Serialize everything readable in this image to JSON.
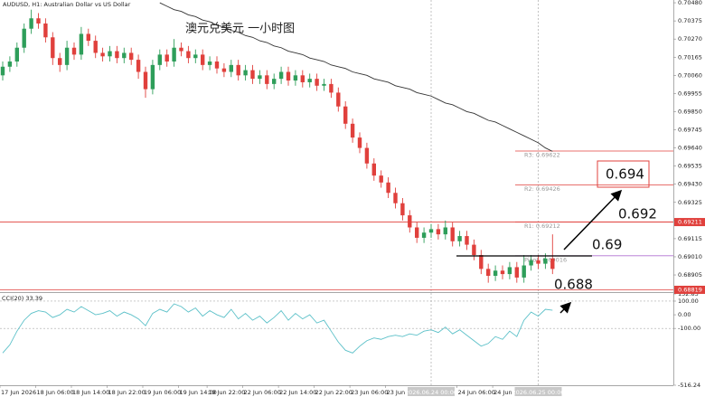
{
  "chart_data": {
    "type": "candlestick",
    "title": "AUDUSD, H1: Australian Dollar vs US Dollar",
    "caption": "澳元兑美元 一小时图",
    "up_color": "#2e9e5a",
    "down_color": "#e0403c",
    "open": [
      0.7006,
      0.7011,
      0.7014,
      0.7022,
      0.7033,
      0.7039,
      0.7036,
      0.7028,
      0.7016,
      0.7012,
      0.7022,
      0.7018,
      0.703,
      0.7026,
      0.7019,
      0.7017,
      0.702,
      0.7016,
      0.7019,
      0.7015,
      0.7008,
      0.6998,
      0.7012,
      0.7018,
      0.7014,
      0.7022,
      0.702,
      0.7016,
      0.7018,
      0.7012,
      0.7014,
      0.701,
      0.7008,
      0.7012,
      0.7006,
      0.7009,
      0.7004,
      0.7006,
      0.7001,
      0.7004,
      0.7008,
      0.7003,
      0.7006,
      0.7002,
      0.7004,
      0.7,
      0.7001,
      0.6996,
      0.6988,
      0.6978,
      0.697,
      0.6964,
      0.6955,
      0.6948,
      0.6944,
      0.6938,
      0.6932,
      0.6925,
      0.6918,
      0.6912,
      0.6915,
      0.6917,
      0.6914,
      0.6918,
      0.691,
      0.6913,
      0.6908,
      0.6902,
      0.6894,
      0.689,
      0.6893,
      0.6891,
      0.6895,
      0.6889,
      0.6896,
      0.6899,
      0.6897,
      0.69
    ],
    "high": [
      0.7014,
      0.7017,
      0.7025,
      0.7036,
      0.7044,
      0.7042,
      0.7039,
      0.7031,
      0.7019,
      0.7026,
      0.7025,
      0.7034,
      0.7033,
      0.7029,
      0.7022,
      0.7023,
      0.7023,
      0.7022,
      0.7022,
      0.7018,
      0.7011,
      0.7015,
      0.7021,
      0.7021,
      0.7027,
      0.7025,
      0.7023,
      0.7021,
      0.7021,
      0.7017,
      0.7017,
      0.7013,
      0.7015,
      0.7015,
      0.7012,
      0.7012,
      0.7009,
      0.7009,
      0.7007,
      0.7011,
      0.7011,
      0.7009,
      0.7009,
      0.7007,
      0.7007,
      0.7004,
      0.7004,
      0.6999,
      0.6991,
      0.6981,
      0.6973,
      0.6967,
      0.6958,
      0.6951,
      0.6947,
      0.6941,
      0.6935,
      0.6928,
      0.6921,
      0.6918,
      0.692,
      0.692,
      0.6922,
      0.6921,
      0.6916,
      0.6916,
      0.6911,
      0.6905,
      0.6897,
      0.6896,
      0.6896,
      0.6898,
      0.6898,
      0.6902,
      0.6902,
      0.6902,
      0.6903,
      0.6914
    ],
    "low": [
      0.7003,
      0.7008,
      0.7011,
      0.7019,
      0.703,
      0.7033,
      0.7025,
      0.7012,
      0.7008,
      0.7009,
      0.7015,
      0.7015,
      0.7023,
      0.7016,
      0.7014,
      0.7014,
      0.7013,
      0.7013,
      0.7012,
      0.7004,
      0.6993,
      0.6995,
      0.7009,
      0.7011,
      0.7011,
      0.7017,
      0.7013,
      0.7013,
      0.7009,
      0.7009,
      0.7007,
      0.7005,
      0.7005,
      0.7003,
      0.7003,
      0.7001,
      0.7001,
      0.6998,
      0.6998,
      0.7001,
      0.7,
      0.7,
      0.6999,
      0.6999,
      0.6997,
      0.6997,
      0.6993,
      0.6985,
      0.6975,
      0.6967,
      0.6961,
      0.6952,
      0.6945,
      0.6941,
      0.6935,
      0.6929,
      0.6922,
      0.6915,
      0.6909,
      0.6909,
      0.6912,
      0.6911,
      0.6911,
      0.6907,
      0.6907,
      0.6905,
      0.6899,
      0.6891,
      0.6886,
      0.6887,
      0.6888,
      0.6888,
      0.6886,
      0.6886,
      0.6893,
      0.6894,
      0.6894,
      0.6891
    ],
    "close": [
      0.7011,
      0.7014,
      0.7022,
      0.7033,
      0.7039,
      0.7036,
      0.7028,
      0.7016,
      0.7012,
      0.7022,
      0.7018,
      0.703,
      0.7026,
      0.7019,
      0.7017,
      0.702,
      0.7016,
      0.7019,
      0.7015,
      0.7008,
      0.6998,
      0.7012,
      0.7018,
      0.7014,
      0.7022,
      0.702,
      0.7016,
      0.7018,
      0.7012,
      0.7014,
      0.701,
      0.7008,
      0.7012,
      0.7006,
      0.7009,
      0.7004,
      0.7006,
      0.7001,
      0.7004,
      0.7008,
      0.7003,
      0.7006,
      0.7002,
      0.7004,
      0.7,
      0.7001,
      0.6996,
      0.6988,
      0.6978,
      0.697,
      0.6964,
      0.6955,
      0.6948,
      0.6944,
      0.6938,
      0.6932,
      0.6925,
      0.6918,
      0.6912,
      0.6915,
      0.6917,
      0.6914,
      0.6918,
      0.691,
      0.6913,
      0.6908,
      0.6902,
      0.6894,
      0.689,
      0.6893,
      0.6891,
      0.6895,
      0.6889,
      0.6896,
      0.6899,
      0.6897,
      0.69,
      0.6894
    ],
    "ma": {
      "color": "#333333",
      "values": [
        null,
        null,
        null,
        null,
        null,
        null,
        null,
        null,
        null,
        null,
        null,
        null,
        null,
        null,
        null,
        null,
        null,
        null,
        null,
        null,
        null,
        null,
        0.7048,
        0.7046,
        0.7044,
        0.7043,
        0.7041,
        0.704,
        0.7038,
        0.7037,
        0.7035,
        0.7034,
        0.7032,
        0.7031,
        0.7029,
        0.7028,
        0.7026,
        0.7025,
        0.7023,
        0.7022,
        0.702,
        0.7019,
        0.7018,
        0.7016,
        0.7015,
        0.7014,
        0.7012,
        0.7011,
        0.701,
        0.7008,
        0.7007,
        0.7006,
        0.7004,
        0.7003,
        0.7002,
        0.7,
        0.6999,
        0.6998,
        0.6996,
        0.6995,
        0.6994,
        0.6992,
        0.699,
        0.6989,
        0.6987,
        0.6985,
        0.6984,
        0.6982,
        0.698,
        0.6979,
        0.6977,
        0.6975,
        0.6973,
        0.6971,
        0.6969,
        0.6967,
        0.6964,
        0.6962
      ]
    },
    "ylim": [
      0.68811,
      0.70496
    ],
    "yticks": [
      {
        "value": 0.7048,
        "label": "0.70480"
      },
      {
        "value": 0.70375,
        "label": "0.70375"
      },
      {
        "value": 0.7027,
        "label": "0.70270"
      },
      {
        "value": 0.70165,
        "label": "0.70165"
      },
      {
        "value": 0.7006,
        "label": "0.70060"
      },
      {
        "value": 0.69955,
        "label": "0.69955"
      },
      {
        "value": 0.6985,
        "label": "0.69850"
      },
      {
        "value": 0.69745,
        "label": "0.69745"
      },
      {
        "value": 0.6964,
        "label": "0.69640"
      },
      {
        "value": 0.69535,
        "label": "0.69535"
      },
      {
        "value": 0.6943,
        "label": "0.69430"
      },
      {
        "value": 0.69325,
        "label": "0.69325"
      },
      {
        "value": 0.6922,
        "label": "0.69220"
      },
      {
        "value": 0.69115,
        "label": "0.69115"
      },
      {
        "value": 0.6901,
        "label": "0.69010"
      },
      {
        "value": 0.68905,
        "label": "0.68905"
      }
    ],
    "price_lines": [
      {
        "value": 0.69211,
        "label": "0.69211",
        "color": "#e0403c"
      },
      {
        "value": 0.68819,
        "label": "0.68819",
        "color": "#e0403c"
      }
    ],
    "pivots": [
      {
        "value": 0.69622,
        "label": "R3: 0.69622",
        "color": "#e0403c"
      },
      {
        "value": 0.69426,
        "label": "R2: 0.69426",
        "color": "#e0403c"
      },
      {
        "value": 0.69212,
        "label": "R1: 0.69212",
        "color": "#e0403c"
      },
      {
        "value": 0.69016,
        "label": "Pivot: 0.69016",
        "color": "#b070d0"
      }
    ],
    "xticks": [
      {
        "value": 0,
        "label": "17 Jun 2026"
      },
      {
        "value": 5,
        "label": "18 Jun 06:00"
      },
      {
        "value": 10,
        "label": "18 Jun 14:00"
      },
      {
        "value": 15,
        "label": "18 Jun 22:00"
      },
      {
        "value": 20,
        "label": "19 Jun 06:00"
      },
      {
        "value": 25,
        "label": "19 Jun 14:00"
      },
      {
        "value": 29,
        "label": "19 Jun 22:00"
      },
      {
        "value": 34,
        "label": "22 Jun 06:00"
      },
      {
        "value": 39,
        "label": "22 Jun 14:00"
      },
      {
        "value": 44,
        "label": "22 Jun 22:00"
      },
      {
        "value": 49,
        "label": "23 Jun 06:00"
      },
      {
        "value": 54,
        "label": "23 Jun 14:00"
      },
      {
        "value": 64,
        "label": "24 Jun 06:00"
      },
      {
        "value": 69,
        "label": "24 Jun 14:00"
      }
    ],
    "xmarkers": [
      {
        "value": 60,
        "label": "2026.06.24 00:00"
      },
      {
        "value": 75,
        "label": "2026.06.25 00:00"
      }
    ],
    "indicator": {
      "name": "CCI(20) 33.39",
      "color": "#5bc0c8",
      "ylim": [
        -516.24,
        152.83
      ],
      "yticks": [
        152.83,
        {
          "value": 100,
          "label": "100.00"
        },
        {
          "value": 0,
          "label": "0.00"
        },
        {
          "value": -100,
          "label": "-100.00"
        },
        -516.24
      ],
      "values": [
        -280,
        -220,
        -120,
        -40,
        10,
        30,
        20,
        -20,
        0,
        40,
        20,
        60,
        30,
        0,
        10,
        30,
        -10,
        20,
        0,
        -30,
        -80,
        10,
        40,
        20,
        80,
        60,
        20,
        50,
        -10,
        30,
        0,
        -20,
        40,
        -30,
        10,
        -40,
        -10,
        -60,
        -20,
        30,
        -40,
        10,
        -30,
        0,
        -60,
        -40,
        -120,
        -200,
        -260,
        -280,
        -230,
        -190,
        -170,
        -180,
        -160,
        -150,
        -160,
        -140,
        -150,
        -120,
        -110,
        -130,
        -90,
        -140,
        -110,
        -150,
        -190,
        -230,
        -210,
        -160,
        -180,
        -120,
        -160,
        -40,
        20,
        -10,
        40,
        33.39
      ]
    },
    "annotations": [
      "0.694",
      "0.692",
      "0.69",
      "0.688"
    ]
  }
}
